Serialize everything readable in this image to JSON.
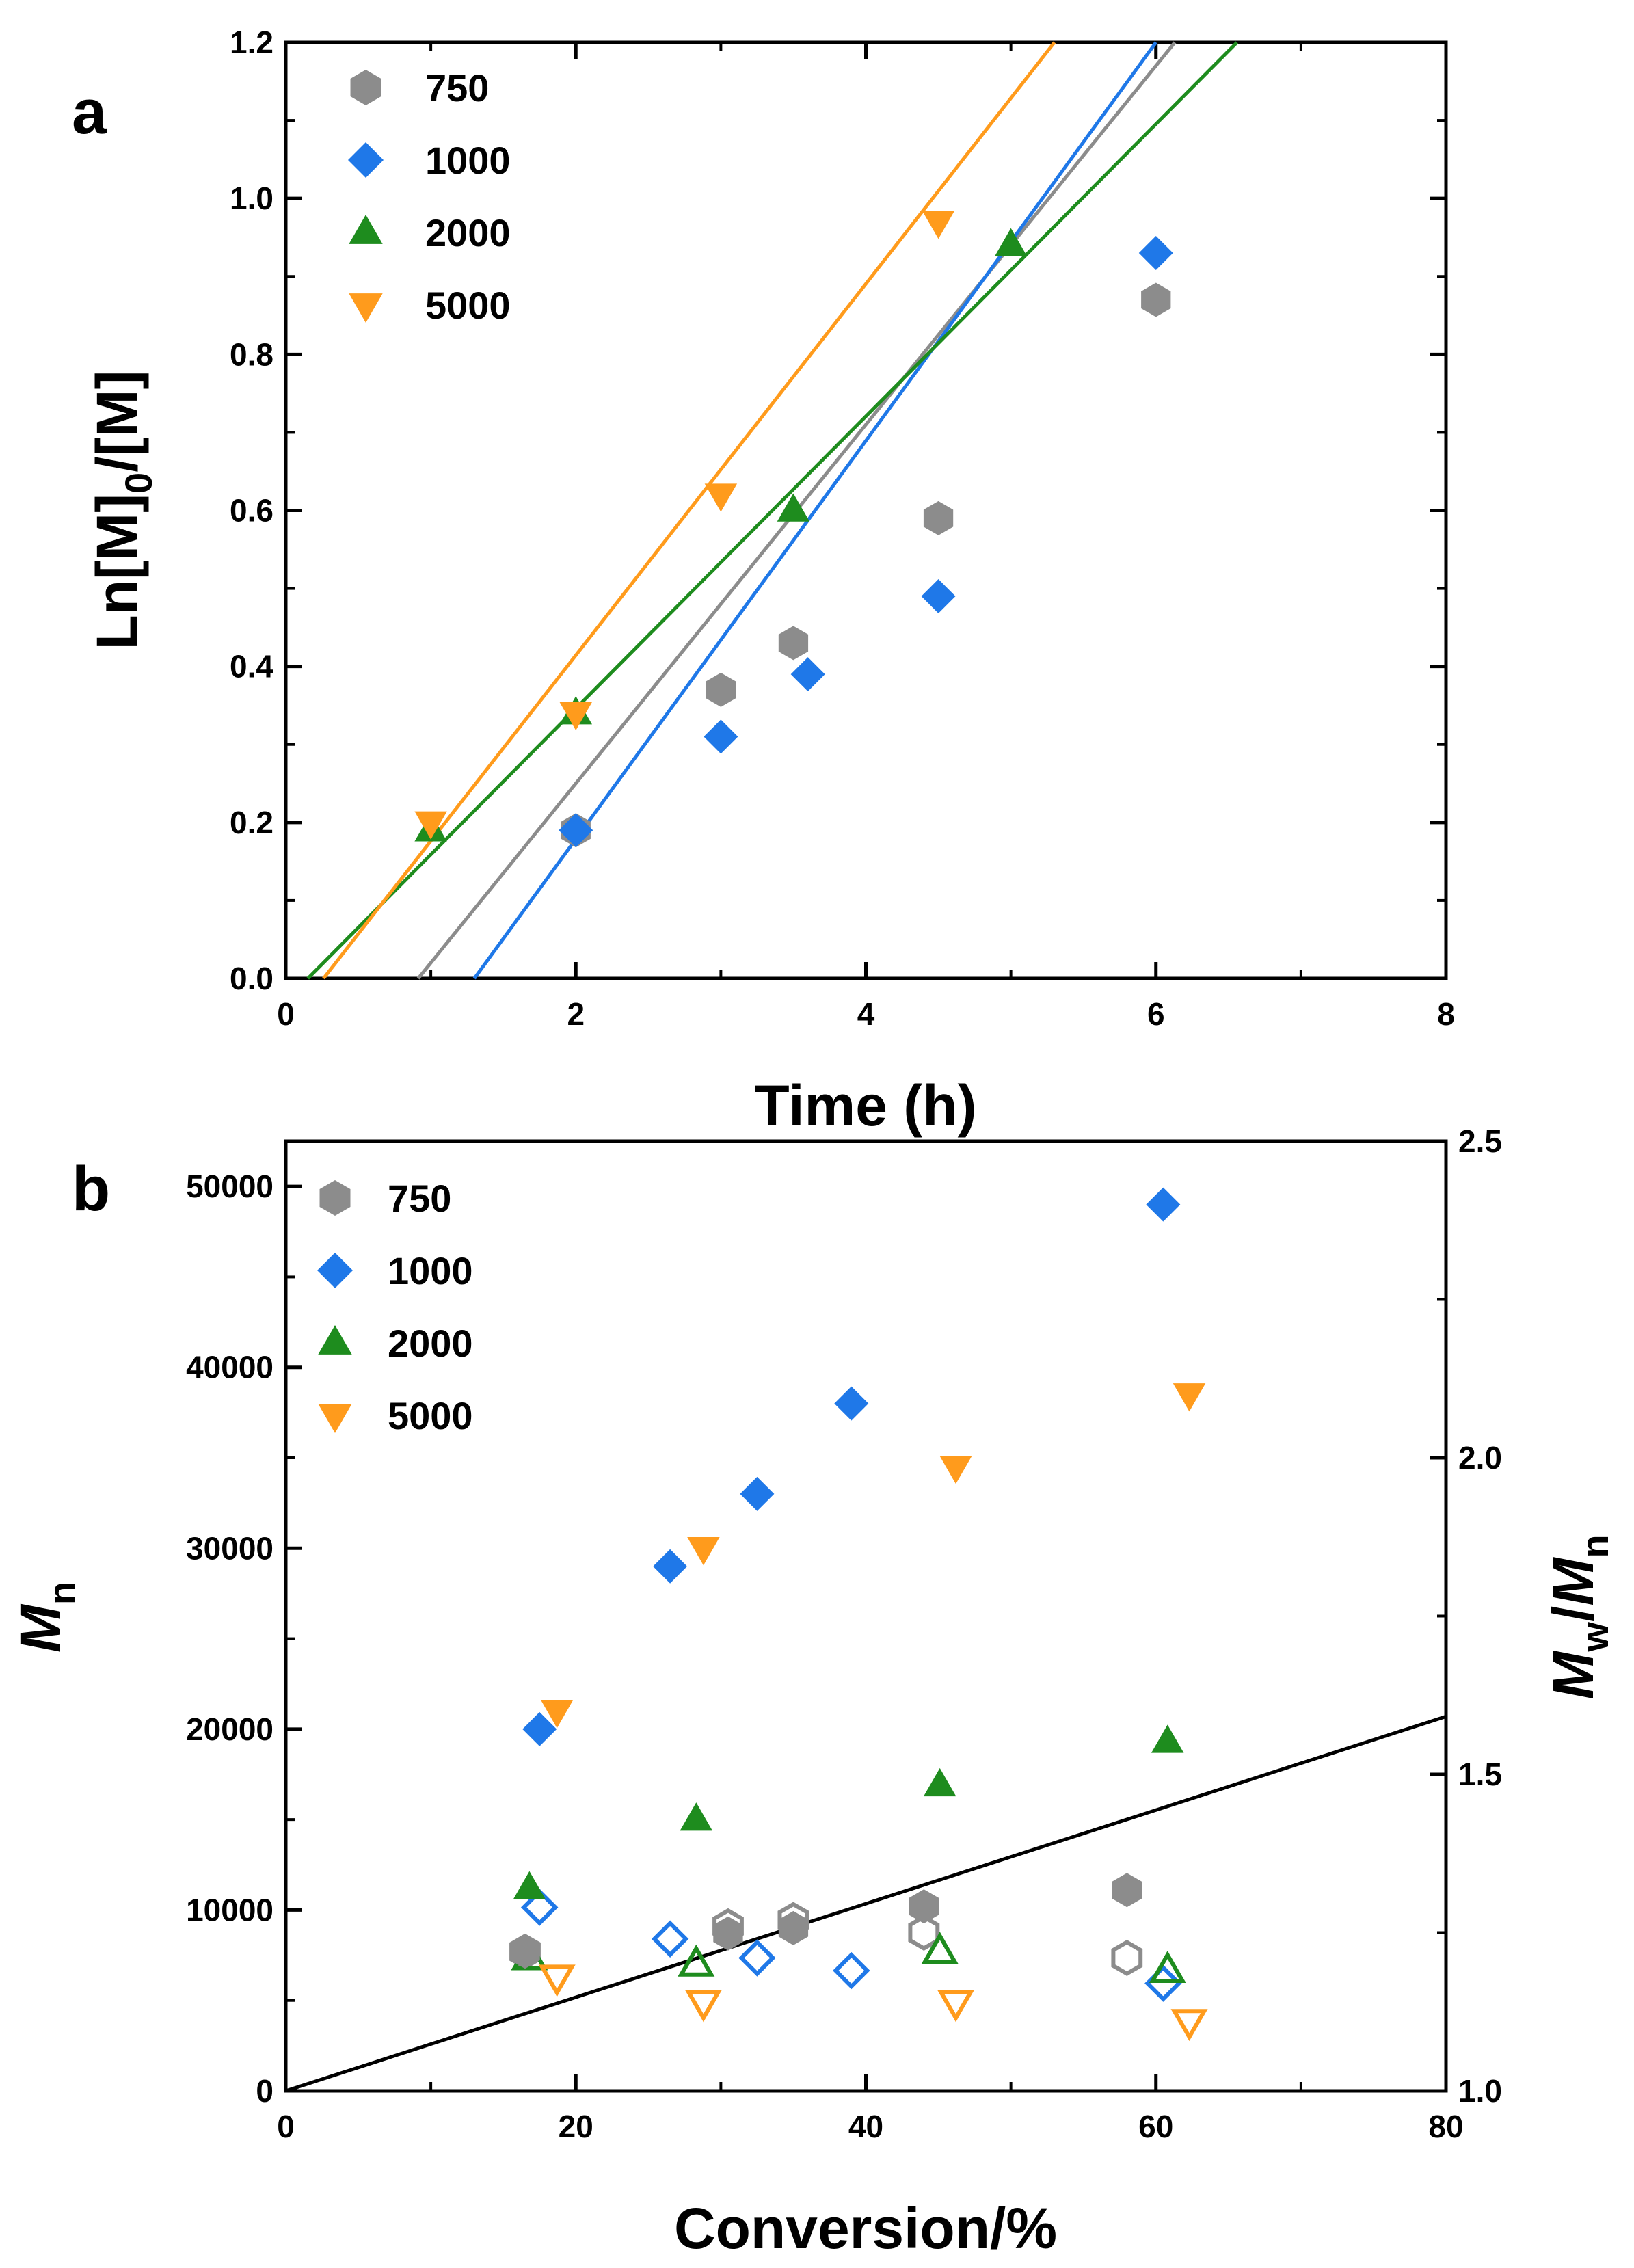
{
  "chart_data": [
    {
      "panel_label": "a",
      "type": "scatter",
      "xlabel": "Time (h)",
      "ylabel": "Ln[M]0/[M]",
      "ylabel_parts": {
        "main": "Ln[M]",
        "sub": "0",
        "tail": "/[M]"
      },
      "xlim": [
        0,
        8
      ],
      "ylim": [
        0,
        1.2
      ],
      "xticks": [
        "0",
        "2",
        "4",
        "6",
        "8"
      ],
      "xtick_values": [
        0,
        2,
        4,
        6,
        8
      ],
      "yticks": [
        "0.0",
        "0.2",
        "0.4",
        "0.6",
        "0.8",
        "1.0",
        "1.2"
      ],
      "ytick_values": [
        0,
        0.2,
        0.4,
        0.6,
        0.8,
        1.0,
        1.2
      ],
      "legend_position": "top-left",
      "series": [
        {
          "name": "750",
          "marker": "hexagon",
          "color": "#8c8c8c",
          "filled": true,
          "points": [
            [
              2,
              0.19
            ],
            [
              3,
              0.37
            ],
            [
              3.5,
              0.43
            ],
            [
              4.5,
              0.59
            ],
            [
              6,
              0.87
            ]
          ],
          "fit": {
            "slope": 0.23,
            "intercept": -0.21
          }
        },
        {
          "name": "1000",
          "marker": "diamond",
          "color": "#1f78e8",
          "filled": true,
          "points": [
            [
              2,
              0.19
            ],
            [
              3,
              0.31
            ],
            [
              3.6,
              0.39
            ],
            [
              4.5,
              0.49
            ],
            [
              6,
              0.93
            ]
          ],
          "fit": {
            "slope": 0.2553,
            "intercept": -0.3319
          }
        },
        {
          "name": "2000",
          "marker": "triangle-up",
          "color": "#1e8c1e",
          "filled": true,
          "points": [
            [
              1,
              0.19
            ],
            [
              2,
              0.34
            ],
            [
              3.5,
              0.6
            ],
            [
              5,
              0.94
            ]
          ],
          "fit": {
            "slope": 0.1873,
            "intercept": -0.0285
          }
        },
        {
          "name": "5000",
          "marker": "triangle-down",
          "color": "#ff9b1c",
          "filled": true,
          "points": [
            [
              1,
              0.2
            ],
            [
              2,
              0.34
            ],
            [
              3,
              0.62
            ],
            [
              4.5,
              0.97
            ]
          ],
          "fit": {
            "slope": 0.2381,
            "intercept": -0.0619
          }
        }
      ]
    },
    {
      "panel_label": "b",
      "type": "scatter",
      "xlabel": "Conversion/%",
      "ylabel": "Mn",
      "ylabel_parts": {
        "main": "M",
        "sub": "n"
      },
      "ylabel_right": "Mw/Mn",
      "ylabel_right_parts": {
        "main1": "M",
        "sub1": "w",
        "slash": "/",
        "main2": "M",
        "sub2": "n"
      },
      "xlim": [
        0,
        80
      ],
      "ylim": [
        0,
        52500
      ],
      "ylim_right": [
        1.0,
        2.5
      ],
      "xticks": [
        "0",
        "20",
        "40",
        "60",
        "80"
      ],
      "xtick_values": [
        0,
        20,
        40,
        60,
        80
      ],
      "yticks": [
        "0",
        "10000",
        "20000",
        "30000",
        "40000",
        "50000"
      ],
      "ytick_values": [
        0,
        10000,
        20000,
        30000,
        40000,
        50000
      ],
      "yticks_right": [
        "1.0",
        "1.5",
        "2.0",
        "2.5"
      ],
      "ytick_values_right": [
        1.0,
        1.5,
        2.0,
        2.5
      ],
      "legend_position": "top-left",
      "line": {
        "x": [
          0,
          80
        ],
        "y": [
          0,
          20700
        ],
        "color": "#000000"
      },
      "series": [
        {
          "name": "750",
          "marker": "hexagon",
          "color": "#8c8c8c",
          "mn": [
            [
              16.5,
              7700
            ],
            [
              30.5,
              8700
            ],
            [
              35,
              9000
            ],
            [
              44,
              10200
            ],
            [
              58,
              11100
            ]
          ],
          "pdi": [
            [
              16.5,
              1.22
            ],
            [
              30.5,
              1.26
            ],
            [
              35,
              1.27
            ],
            [
              44,
              1.25
            ],
            [
              58,
              1.21
            ]
          ]
        },
        {
          "name": "1000",
          "marker": "diamond",
          "color": "#1f78e8",
          "mn": [
            [
              17.5,
              20000
            ],
            [
              26.5,
              29000
            ],
            [
              32.5,
              33000
            ],
            [
              39,
              38000
            ],
            [
              60.5,
              49000
            ]
          ],
          "pdi": [
            [
              17.5,
              1.29
            ],
            [
              26.5,
              1.24
            ],
            [
              32.5,
              1.21
            ],
            [
              39,
              1.19
            ],
            [
              60.5,
              1.17
            ]
          ]
        },
        {
          "name": "2000",
          "marker": "triangle-up",
          "color": "#1e8c1e",
          "mn": [
            [
              16.8,
              11200
            ],
            [
              28.3,
              15000
            ],
            [
              45.1,
              16900
            ],
            [
              60.8,
              19300
            ]
          ],
          "pdi": [
            [
              16.8,
              1.21
            ],
            [
              28.3,
              1.2
            ],
            [
              45.1,
              1.22
            ],
            [
              60.8,
              1.19
            ]
          ]
        },
        {
          "name": "5000",
          "marker": "triangle-down",
          "color": "#ff9b1c",
          "mn": [
            [
              18.7,
              21000
            ],
            [
              28.8,
              30000
            ],
            [
              46.2,
              34500
            ],
            [
              62.3,
              38500
            ]
          ],
          "pdi": [
            [
              18.7,
              1.18
            ],
            [
              28.8,
              1.14
            ],
            [
              46.2,
              1.14
            ],
            [
              62.3,
              1.11
            ]
          ]
        }
      ]
    }
  ]
}
